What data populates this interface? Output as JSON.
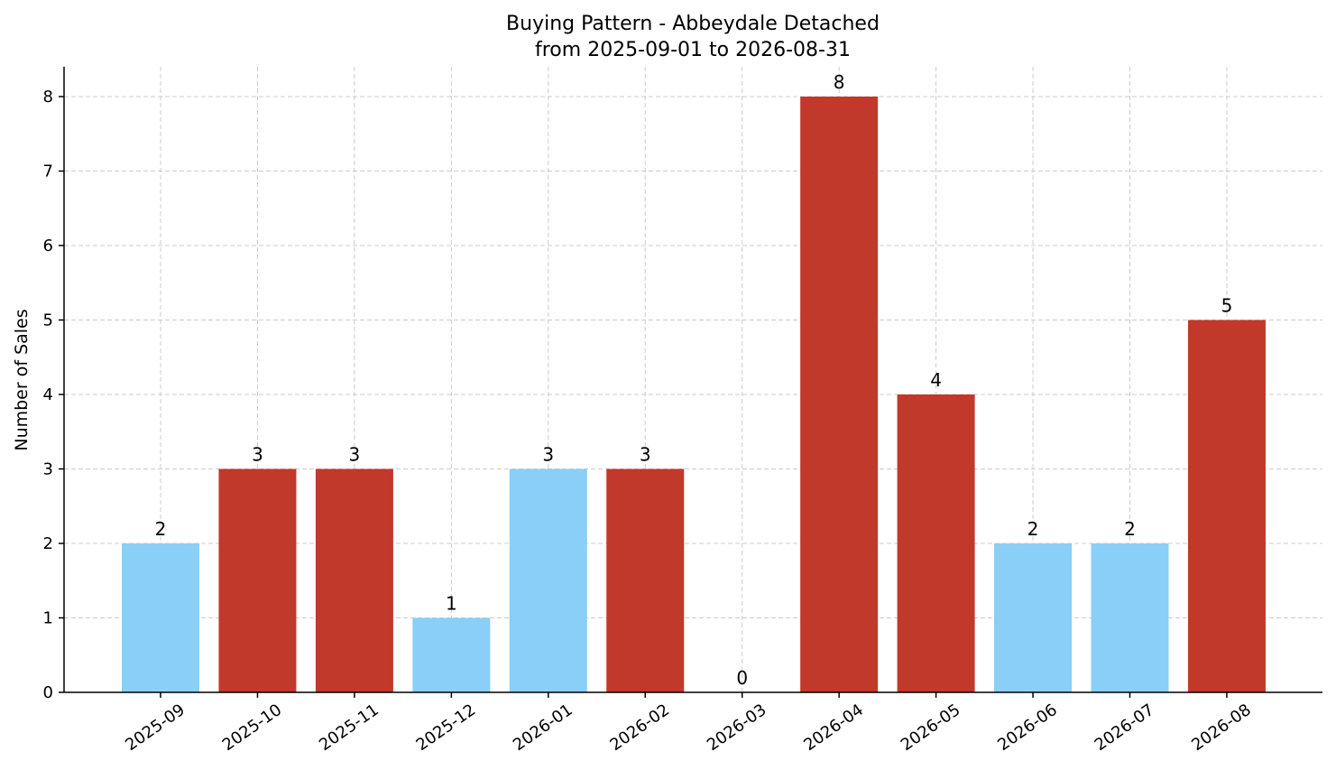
{
  "colors": {
    "low": "#89cff8",
    "high": "#c0392b"
  },
  "chart_data": {
    "type": "bar",
    "title": "Buying Pattern - Abbeydale Detached",
    "subtitle": "from 2025-09-01 to 2026-08-31",
    "xlabel": "",
    "ylabel": "Number of Sales",
    "ylim": [
      0,
      8.4
    ],
    "yticks": [
      0,
      1,
      2,
      3,
      4,
      5,
      6,
      7,
      8
    ],
    "grid": true,
    "categories": [
      "2025-09",
      "2025-10",
      "2025-11",
      "2025-12",
      "2026-01",
      "2026-02",
      "2026-03",
      "2026-04",
      "2026-05",
      "2026-06",
      "2026-07",
      "2026-08"
    ],
    "values": [
      2,
      3,
      3,
      1,
      3,
      3,
      0,
      8,
      4,
      2,
      2,
      5
    ],
    "bar_colors": [
      "#89cff8",
      "#c0392b",
      "#c0392b",
      "#89cff8",
      "#89cff8",
      "#c0392b",
      "#89cff8",
      "#c0392b",
      "#c0392b",
      "#89cff8",
      "#89cff8",
      "#c0392b"
    ]
  }
}
